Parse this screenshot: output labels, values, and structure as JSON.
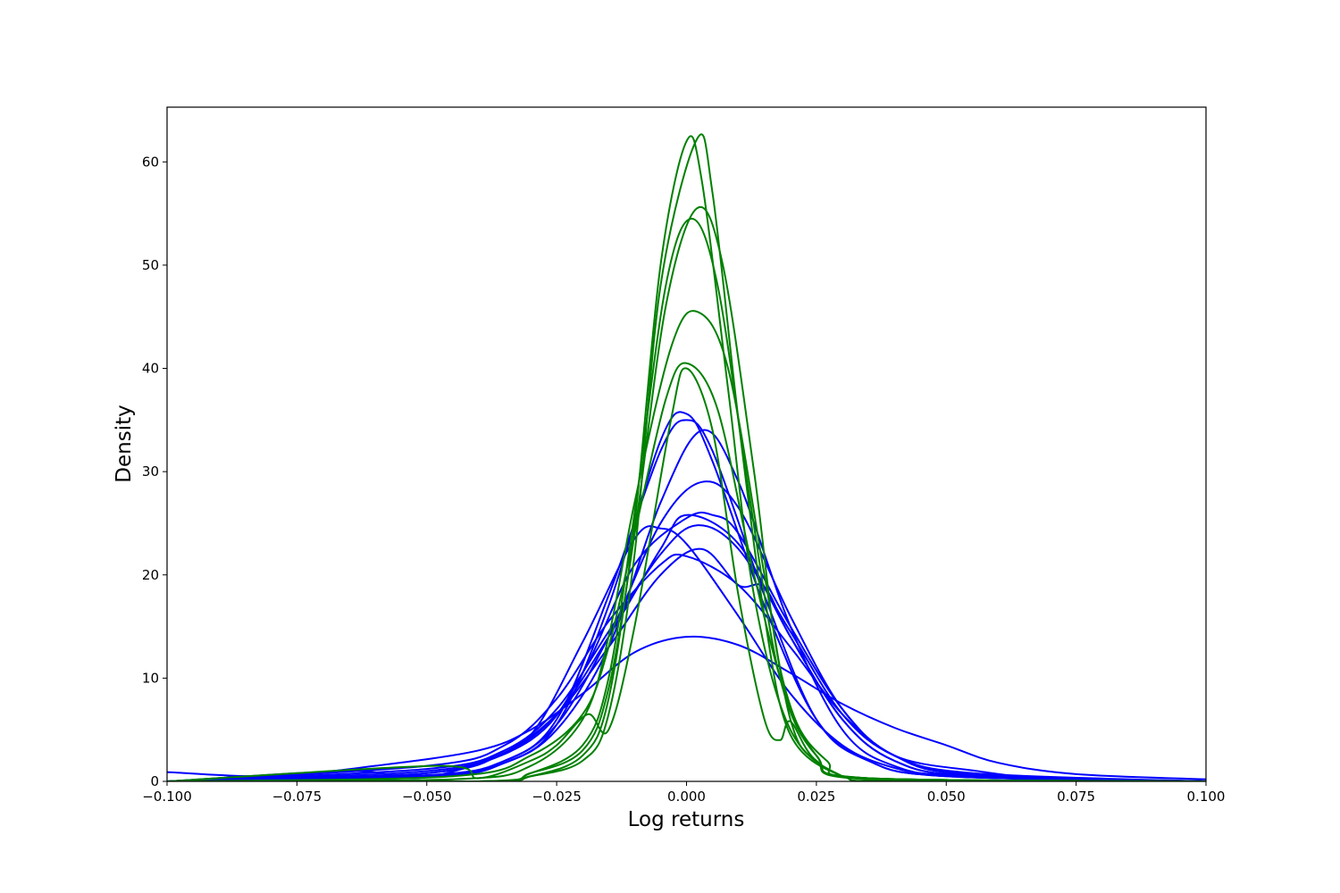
{
  "chart_data": {
    "type": "line",
    "xlabel": "Log returns",
    "ylabel": "Density",
    "xlim": [
      -0.1,
      0.1
    ],
    "ylim": [
      0,
      65.3
    ],
    "grid": false,
    "x_ticks": [
      -0.1,
      -0.075,
      -0.05,
      -0.025,
      0.0,
      0.025,
      0.05,
      0.075,
      0.1
    ],
    "x_tick_labels": [
      "−0.100",
      "−0.075",
      "−0.050",
      "−0.025",
      "0.000",
      "0.025",
      "0.050",
      "0.075",
      "0.100"
    ],
    "y_ticks": [
      0,
      10,
      20,
      30,
      40,
      50,
      60
    ],
    "y_tick_labels": [
      "0",
      "10",
      "20",
      "30",
      "40",
      "50",
      "60"
    ],
    "colors": {
      "blue": "#0000ff",
      "green": "#008000"
    },
    "series": [
      {
        "color": "#0000ff",
        "x": [
          -0.1,
          -0.08,
          -0.06,
          -0.04,
          -0.03,
          -0.02,
          -0.01,
          0.0,
          0.01,
          0.02,
          0.03,
          0.04,
          0.05,
          0.06,
          0.075,
          0.1
        ],
        "y": [
          0.9,
          0.5,
          1.5,
          3.0,
          5.0,
          8.5,
          12.5,
          14.0,
          13.2,
          10.5,
          7.5,
          5.2,
          3.5,
          1.8,
          0.7,
          0.2
        ]
      },
      {
        "color": "#0000ff",
        "x": [
          -0.1,
          -0.07,
          -0.05,
          -0.04,
          -0.03,
          -0.02,
          -0.01,
          -0.005,
          0.0,
          0.01,
          0.02,
          0.03,
          0.04,
          0.05,
          0.07,
          0.1
        ],
        "y": [
          0.0,
          0.2,
          0.8,
          1.8,
          4.5,
          13.5,
          23.5,
          24.5,
          23.0,
          16.0,
          8.5,
          3.5,
          1.3,
          0.6,
          0.2,
          0.0
        ]
      },
      {
        "color": "#0000ff",
        "x": [
          -0.1,
          -0.065,
          -0.05,
          -0.03,
          -0.02,
          -0.01,
          0.0,
          0.005,
          0.01,
          0.02,
          0.03,
          0.04,
          0.056,
          0.07,
          0.1
        ],
        "y": [
          0.0,
          1.0,
          0.4,
          4.0,
          10.5,
          21.0,
          25.5,
          25.8,
          24.0,
          15.0,
          7.0,
          2.5,
          1.0,
          0.3,
          0.0
        ]
      },
      {
        "color": "#0000ff",
        "x": [
          -0.1,
          -0.05,
          -0.035,
          -0.025,
          -0.015,
          -0.005,
          0.0,
          0.005,
          0.015,
          0.025,
          0.035,
          0.05,
          0.1
        ],
        "y": [
          0.0,
          0.5,
          2.0,
          6.0,
          18.0,
          32.0,
          35.0,
          32.0,
          18.0,
          6.0,
          2.0,
          0.5,
          0.0
        ]
      },
      {
        "color": "#0000ff",
        "x": [
          -0.1,
          -0.05,
          -0.035,
          -0.025,
          -0.015,
          -0.005,
          0.0,
          0.005,
          0.015,
          0.025,
          0.035,
          0.05,
          0.1
        ],
        "y": [
          0.0,
          0.4,
          1.8,
          5.5,
          17.0,
          33.0,
          35.6,
          31.0,
          17.0,
          6.0,
          2.0,
          0.5,
          0.0
        ]
      },
      {
        "color": "#0000ff",
        "x": [
          -0.1,
          -0.05,
          -0.035,
          -0.025,
          -0.015,
          -0.005,
          0.003,
          0.01,
          0.02,
          0.03,
          0.04,
          0.055,
          0.1
        ],
        "y": [
          0.0,
          0.5,
          1.8,
          5.0,
          13.0,
          27.0,
          34.0,
          29.0,
          15.0,
          5.0,
          1.5,
          0.4,
          0.0
        ]
      },
      {
        "color": "#0000ff",
        "x": [
          -0.1,
          -0.05,
          -0.035,
          -0.025,
          -0.015,
          -0.005,
          0.003,
          0.01,
          0.02,
          0.03,
          0.04,
          0.055,
          0.1
        ],
        "y": [
          0.0,
          0.6,
          2.0,
          5.5,
          14.0,
          25.0,
          29.0,
          26.5,
          16.0,
          7.0,
          2.5,
          0.6,
          0.0
        ]
      },
      {
        "color": "#0000ff",
        "x": [
          -0.1,
          -0.05,
          -0.035,
          -0.025,
          -0.015,
          -0.005,
          0.0,
          0.01,
          0.02,
          0.03,
          0.04,
          0.055,
          0.1
        ],
        "y": [
          0.0,
          0.8,
          2.8,
          6.5,
          14.0,
          22.5,
          25.8,
          23.0,
          14.0,
          6.0,
          2.0,
          0.5,
          0.0
        ]
      },
      {
        "color": "#0000ff",
        "x": [
          -0.1,
          -0.05,
          -0.035,
          -0.025,
          -0.015,
          -0.005,
          0.002,
          0.01,
          0.02,
          0.03,
          0.04,
          0.055,
          0.1
        ],
        "y": [
          0.0,
          1.0,
          3.0,
          7.0,
          14.5,
          22.0,
          24.8,
          22.5,
          14.5,
          6.5,
          2.5,
          0.7,
          0.0
        ]
      },
      {
        "color": "#0000ff",
        "x": [
          -0.1,
          -0.05,
          -0.035,
          -0.025,
          -0.015,
          -0.005,
          0.0,
          0.01,
          0.02,
          0.03,
          0.04,
          0.055,
          0.1
        ],
        "y": [
          0.0,
          1.5,
          3.5,
          8.0,
          15.5,
          21.0,
          21.8,
          19.0,
          13.0,
          6.5,
          2.5,
          0.8,
          0.0
        ]
      },
      {
        "color": "#0000ff",
        "x": [
          -0.1,
          -0.05,
          -0.035,
          -0.025,
          -0.015,
          -0.005,
          0.003,
          0.01,
          0.015,
          0.02,
          0.03,
          0.04,
          0.055,
          0.1
        ],
        "y": [
          0.0,
          1.2,
          3.0,
          6.5,
          13.0,
          20.0,
          22.5,
          19.0,
          18.8,
          14.0,
          6.0,
          2.0,
          0.5,
          0.0
        ]
      },
      {
        "color": "#008000",
        "x": [
          -0.1,
          -0.04,
          -0.03,
          -0.02,
          -0.015,
          -0.01,
          -0.005,
          0.0,
          0.003,
          0.008,
          0.013,
          0.02,
          0.03,
          0.04,
          0.1
        ],
        "y": [
          0.0,
          0.0,
          0.5,
          2.5,
          8.0,
          25.0,
          50.0,
          62.0,
          58.0,
          38.0,
          18.0,
          5.0,
          0.5,
          0.0,
          0.0
        ]
      },
      {
        "color": "#008000",
        "x": [
          -0.1,
          -0.04,
          -0.03,
          -0.02,
          -0.015,
          -0.01,
          -0.005,
          0.002,
          0.005,
          0.01,
          0.015,
          0.02,
          0.03,
          0.04,
          0.1
        ],
        "y": [
          0.0,
          0.0,
          0.5,
          2.0,
          6.5,
          22.0,
          48.0,
          62.2,
          57.0,
          35.0,
          16.0,
          4.5,
          0.5,
          0.0,
          0.0
        ]
      },
      {
        "color": "#008000",
        "x": [
          -0.1,
          -0.04,
          -0.03,
          -0.02,
          -0.015,
          -0.01,
          -0.004,
          0.001,
          0.006,
          0.012,
          0.018,
          0.025,
          0.035,
          0.1
        ],
        "y": [
          0.0,
          0.0,
          0.8,
          3.5,
          10.0,
          26.0,
          48.0,
          54.5,
          48.0,
          28.0,
          10.0,
          2.5,
          0.3,
          0.0
        ]
      },
      {
        "color": "#008000",
        "x": [
          -0.1,
          -0.04,
          -0.03,
          -0.02,
          -0.015,
          -0.01,
          -0.004,
          0.002,
          0.007,
          0.013,
          0.018,
          0.025,
          0.035,
          0.1
        ],
        "y": [
          0.0,
          0.0,
          0.8,
          3.0,
          9.0,
          24.0,
          46.0,
          55.5,
          50.0,
          30.0,
          11.0,
          2.5,
          0.3,
          0.0
        ]
      },
      {
        "color": "#008000",
        "x": [
          -0.1,
          -0.045,
          -0.03,
          -0.02,
          -0.015,
          -0.01,
          -0.003,
          0.002,
          0.008,
          0.015,
          0.02,
          0.025,
          0.035,
          0.1
        ],
        "y": [
          0.0,
          0.2,
          1.5,
          6.0,
          14.0,
          27.0,
          42.0,
          45.5,
          40.0,
          20.0,
          6.0,
          2.0,
          0.3,
          0.0
        ]
      },
      {
        "color": "#008000",
        "x": [
          -0.1,
          -0.045,
          -0.03,
          -0.02,
          -0.015,
          -0.01,
          -0.004,
          0.0,
          0.006,
          0.013,
          0.02,
          0.027,
          0.035,
          0.1
        ],
        "y": [
          0.0,
          0.5,
          2.5,
          6.5,
          13.0,
          24.0,
          37.0,
          40.5,
          36.0,
          20.0,
          7.0,
          2.0,
          0.3,
          0.0
        ]
      },
      {
        "color": "#008000",
        "x": [
          -0.1,
          -0.048,
          -0.04,
          -0.03,
          -0.025,
          -0.019,
          -0.015,
          -0.01,
          -0.003,
          0.0,
          0.005,
          0.01,
          0.015,
          0.018,
          0.02,
          0.025,
          0.035,
          0.1
        ],
        "y": [
          0.0,
          1.5,
          0.3,
          2.0,
          3.5,
          6.5,
          5.0,
          15.0,
          35.0,
          40.0,
          34.0,
          18.0,
          6.0,
          4.0,
          5.8,
          2.0,
          0.2,
          0.0
        ]
      }
    ]
  }
}
